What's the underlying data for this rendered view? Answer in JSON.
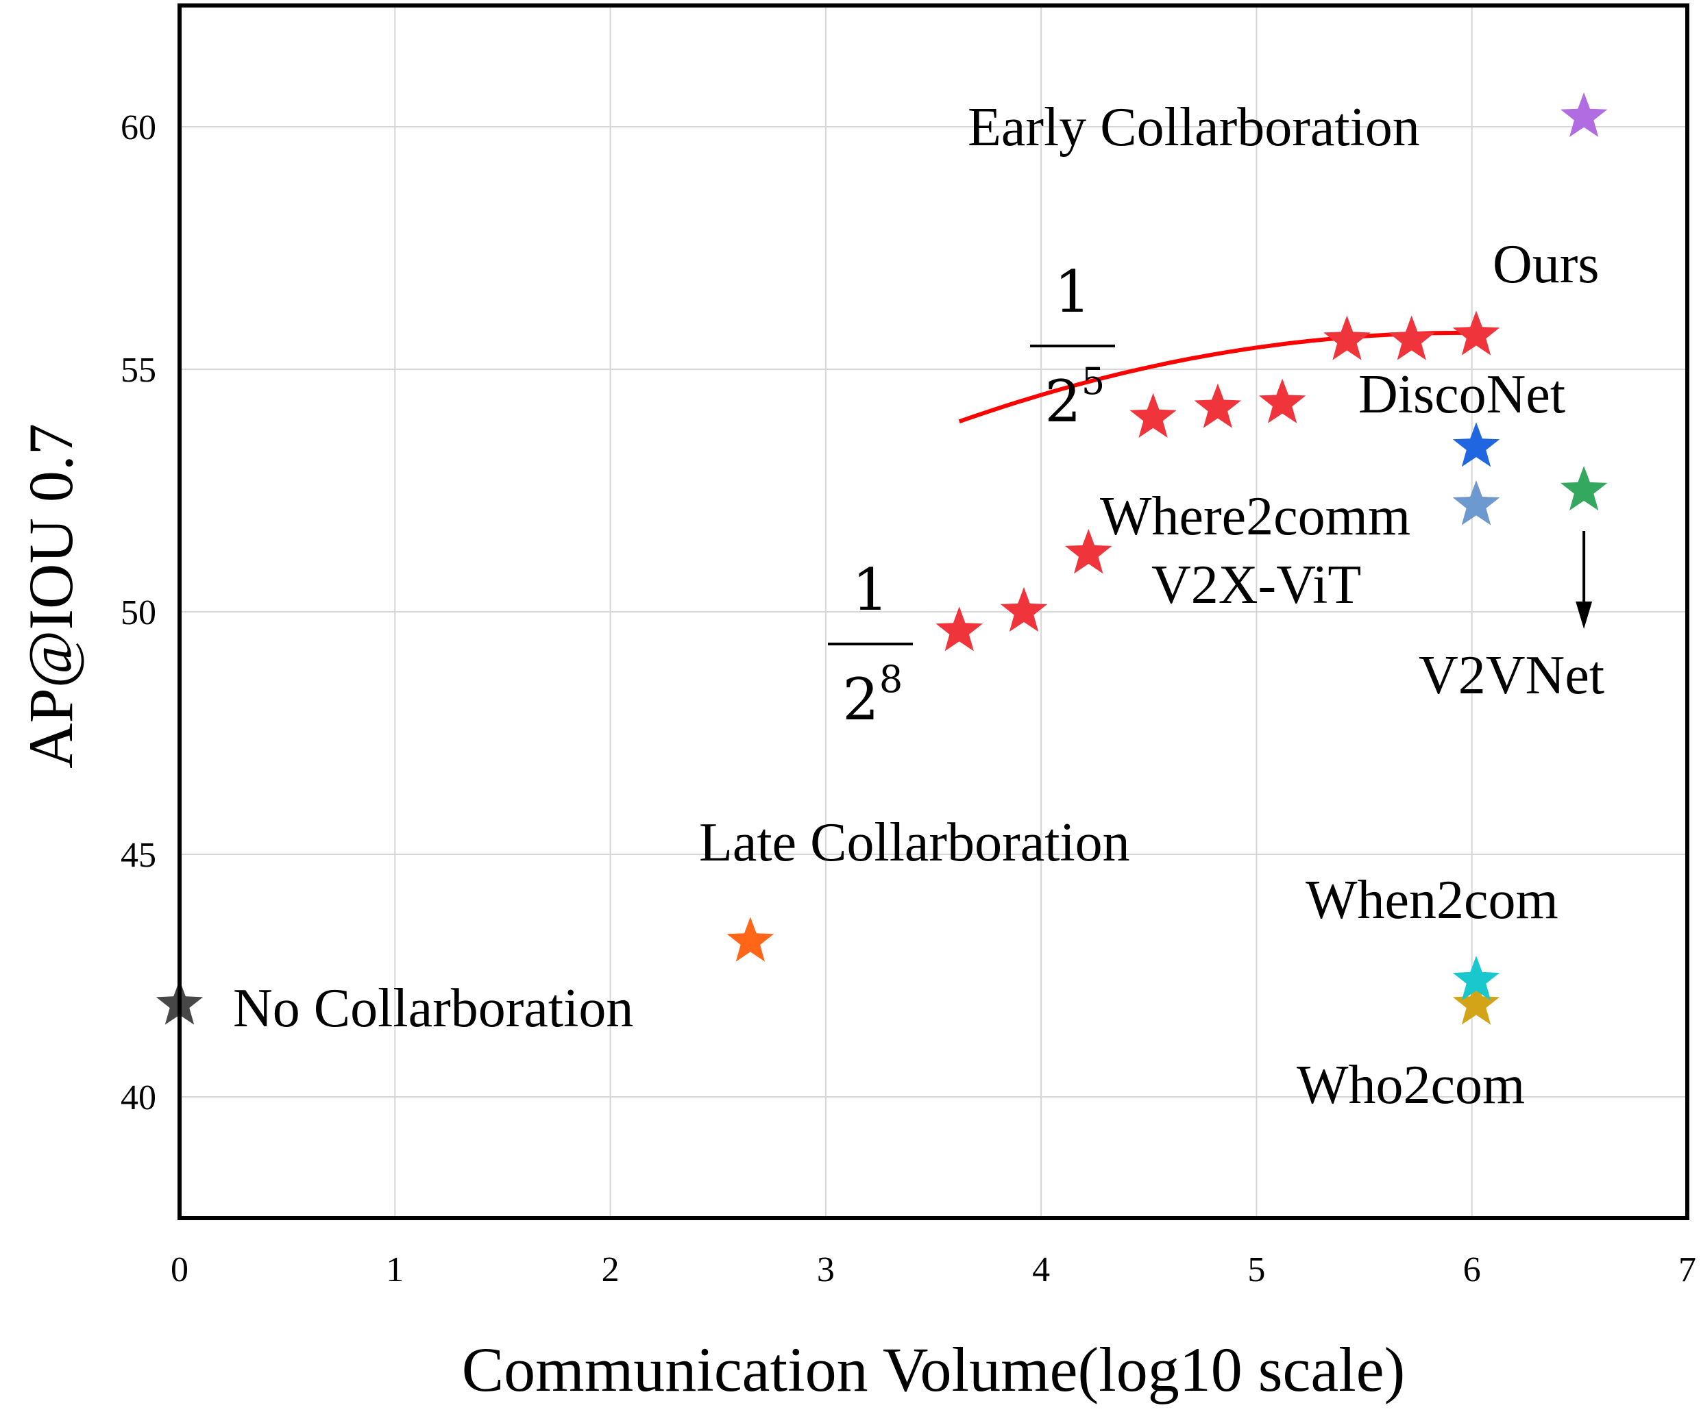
{
  "chart_data": {
    "type": "scatter",
    "xlabel": "Communication Volume(log10 scale)",
    "ylabel": "AP@IOU 0.7",
    "xlim": [
      0,
      7
    ],
    "ylim": [
      37.5,
      62.5
    ],
    "xticks": [
      0,
      1,
      2,
      3,
      4,
      5,
      6,
      7
    ],
    "yticks": [
      40,
      45,
      50,
      55,
      60
    ],
    "grid": true,
    "series": [
      {
        "name": "Ours",
        "color": "#f0343c",
        "points": [
          [
            3.62,
            49.6
          ],
          [
            3.92,
            50.0
          ],
          [
            4.22,
            51.2
          ],
          [
            4.52,
            54.0
          ],
          [
            4.82,
            54.2
          ],
          [
            5.12,
            54.3
          ],
          [
            5.42,
            55.6
          ],
          [
            5.72,
            55.6
          ],
          [
            6.02,
            55.7
          ]
        ]
      },
      {
        "name": "Early Collarboration",
        "color": "#b06ce0",
        "points": [
          [
            6.52,
            60.2
          ]
        ]
      },
      {
        "name": "DiscoNet",
        "color": "#1f66e0",
        "points": [
          [
            6.02,
            53.4
          ]
        ]
      },
      {
        "name": "V2X-ViT",
        "color": "#d85860",
        "points": [
          [
            6.02,
            52.2
          ]
        ]
      },
      {
        "name": "Where2comm",
        "color": "#6c9ad0",
        "points": [
          [
            6.02,
            52.2
          ]
        ]
      },
      {
        "name": "V2VNet",
        "color": "#35a860",
        "points": [
          [
            6.52,
            52.5
          ]
        ]
      },
      {
        "name": "Late Collarboration",
        "color": "#ff6618",
        "points": [
          [
            2.65,
            43.2
          ]
        ]
      },
      {
        "name": "No Collarboration",
        "color": "#474747",
        "points": [
          [
            0.0,
            41.9
          ]
        ]
      },
      {
        "name": "Who2com",
        "color": "#d4a418",
        "points": [
          [
            6.02,
            41.9
          ]
        ]
      },
      {
        "name": "When2com",
        "color": "#18c8cc",
        "points": [
          [
            6.02,
            42.4
          ]
        ]
      }
    ],
    "trend_line": {
      "color": "#ff0000",
      "x_range": [
        3.62,
        6.02
      ],
      "peak": [
        5.95,
        55.75
      ],
      "coef_a": 0.3365
    },
    "annotations": [
      {
        "label": "early",
        "text": "Early Collarboration"
      },
      {
        "label": "ours",
        "text": "Ours"
      },
      {
        "label": "disconet",
        "text": "DiscoNet"
      },
      {
        "label": "where2comm",
        "text": "Where2comm"
      },
      {
        "label": "v2xvit",
        "text": "V2X-ViT"
      },
      {
        "label": "v2vnet",
        "text": "V2VNet"
      },
      {
        "label": "late",
        "text": "Late Collarboration"
      },
      {
        "label": "nocollab",
        "text": "No Collarboration"
      },
      {
        "label": "when2com",
        "text": "When2com"
      },
      {
        "label": "who2com",
        "text": "Who2com"
      }
    ],
    "fraction_labels": [
      {
        "label": "ratio-high",
        "numerator": "1",
        "base": "2",
        "exponent": "5"
      },
      {
        "label": "ratio-low",
        "numerator": "1",
        "base": "2",
        "exponent": "8"
      }
    ]
  }
}
